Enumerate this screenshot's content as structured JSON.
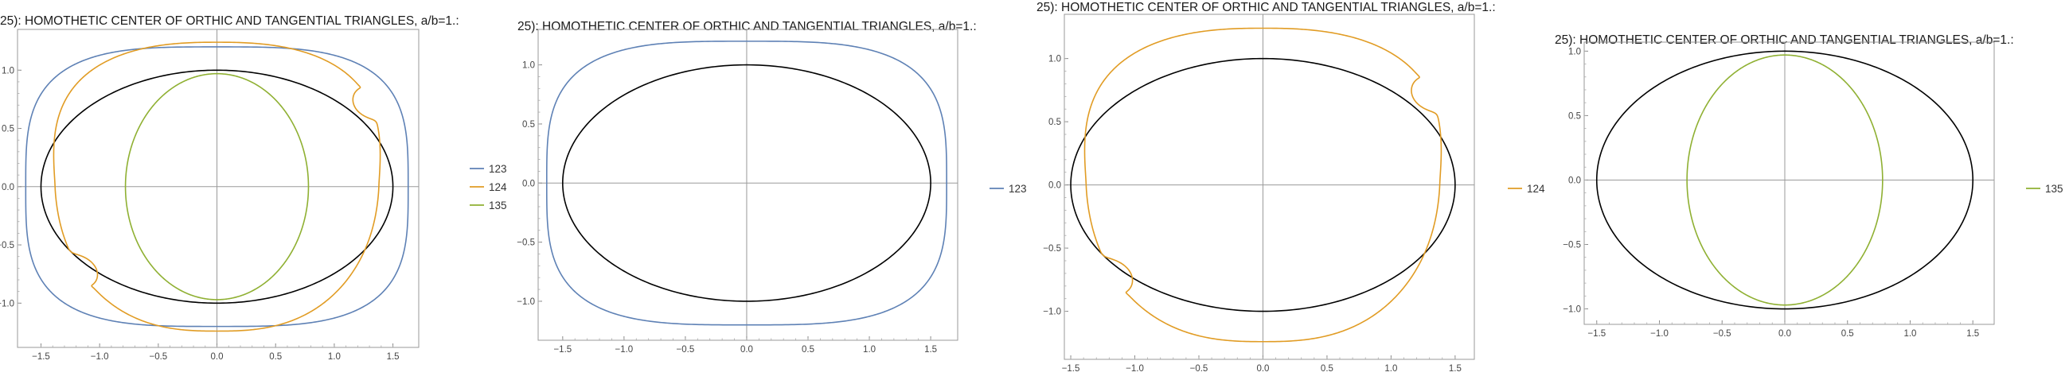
{
  "chart_data": [
    {
      "type": "line",
      "title": "25): HOMOTHETIC CENTER OF ORTHIC AND TANGENTIAL TRIANGLES, a/b=1.:",
      "xlabel": "",
      "ylabel": "",
      "xlim": [
        -1.7,
        1.72
      ],
      "ylim": [
        -1.38,
        1.35
      ],
      "xticks": [
        -1.5,
        -1.0,
        -0.5,
        0.0,
        0.5,
        1.0,
        1.5
      ],
      "yticks": [
        -1.0,
        -0.5,
        0.0,
        0.5,
        1.0
      ],
      "xtick_labels": [
        "−1.5",
        "−1.0",
        "−0.5",
        "0.0",
        "0.5",
        "1.0",
        "1.5"
      ],
      "ytick_labels": [
        "−1.0",
        "−0.5",
        "0.0",
        "0.5",
        "1.0"
      ],
      "grid": false,
      "legend_position": "right",
      "ellipse": {
        "a": 1.5,
        "b": 1.0,
        "color": "#000000"
      },
      "series": [
        {
          "name": "123",
          "color": "#5E81B5",
          "kind": "superellipse",
          "a": 1.63,
          "b": 1.2,
          "n": 3.4
        },
        {
          "name": "124",
          "color": "#E19C24",
          "kind": "looped",
          "ax": 1.38,
          "by": 1.24,
          "la": 0.115,
          "lb": 0.12
        },
        {
          "name": "135",
          "color": "#8FB032",
          "kind": "ellipse",
          "a": 0.78,
          "b": 0.97
        }
      ]
    },
    {
      "type": "line",
      "title": "25): HOMOTHETIC CENTER OF ORTHIC AND TANGENTIAL TRIANGLES, a/b=1.:",
      "xlabel": "",
      "ylabel": "",
      "xlim": [
        -1.7,
        1.72
      ],
      "ylim": [
        -1.33,
        1.3
      ],
      "xticks": [
        -1.5,
        -1.0,
        -0.5,
        0.0,
        0.5,
        1.0,
        1.5
      ],
      "yticks": [
        -1.0,
        -0.5,
        0.0,
        0.5,
        1.0
      ],
      "xtick_labels": [
        "−1.5",
        "−1.0",
        "−0.5",
        "0.0",
        "0.5",
        "1.0",
        "1.5"
      ],
      "ytick_labels": [
        "−1.0",
        "−0.5",
        "0.0",
        "0.5",
        "1.0"
      ],
      "grid": false,
      "legend_position": "right",
      "ellipse": {
        "a": 1.5,
        "b": 1.0,
        "color": "#000000"
      },
      "series": [
        {
          "name": "123",
          "color": "#5E81B5",
          "kind": "superellipse",
          "a": 1.63,
          "b": 1.2,
          "n": 3.4
        }
      ]
    },
    {
      "type": "line",
      "title": "25): HOMOTHETIC CENTER OF ORTHIC AND TANGENTIAL TRIANGLES, a/b=1.:",
      "xlabel": "",
      "ylabel": "",
      "xlim": [
        -1.55,
        1.65
      ],
      "ylim": [
        -1.38,
        1.35
      ],
      "xticks": [
        -1.5,
        -1.0,
        -0.5,
        0.0,
        0.5,
        1.0,
        1.5
      ],
      "yticks": [
        -1.0,
        -0.5,
        0.0,
        0.5,
        1.0
      ],
      "xtick_labels": [
        "−1.5",
        "−1.0",
        "−0.5",
        "0.0",
        "0.5",
        "1.0",
        "1.5"
      ],
      "ytick_labels": [
        "−1.0",
        "−0.5",
        "0.0",
        "0.5",
        "1.0"
      ],
      "grid": false,
      "legend_position": "right",
      "ellipse": {
        "a": 1.5,
        "b": 1.0,
        "color": "#000000"
      },
      "series": [
        {
          "name": "124",
          "color": "#E19C24",
          "kind": "looped",
          "ax": 1.38,
          "by": 1.24,
          "la": 0.115,
          "lb": 0.12
        }
      ]
    },
    {
      "type": "line",
      "title": "25): HOMOTHETIC CENTER OF ORTHIC AND TANGENTIAL TRIANGLES, a/b=1.:",
      "xlabel": "",
      "ylabel": "",
      "xlim": [
        -1.6,
        1.67
      ],
      "ylim": [
        -1.12,
        1.07
      ],
      "xticks": [
        -1.5,
        -1.0,
        -0.5,
        0.0,
        0.5,
        1.0,
        1.5
      ],
      "yticks": [
        -1.0,
        -0.5,
        0.0,
        0.5,
        1.0
      ],
      "xtick_labels": [
        "−1.5",
        "−1.0",
        "−0.5",
        "0.0",
        "0.5",
        "1.0",
        "1.5"
      ],
      "ytick_labels": [
        "−1.0",
        "−0.5",
        "0.0",
        "0.5",
        "1.0"
      ],
      "grid": false,
      "legend_position": "right",
      "ellipse": {
        "a": 1.5,
        "b": 1.0,
        "color": "#000000"
      },
      "series": [
        {
          "name": "135",
          "color": "#8FB032",
          "kind": "ellipse",
          "a": 0.78,
          "b": 0.97
        }
      ]
    }
  ]
}
